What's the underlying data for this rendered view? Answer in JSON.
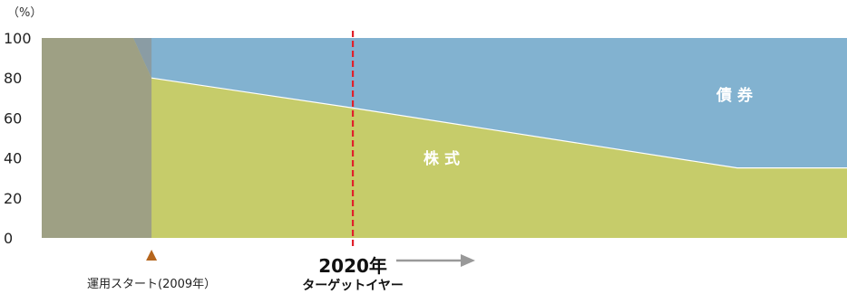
{
  "chart_data": {
    "type": "area",
    "y_unit_label": "（%）",
    "ylim": [
      0,
      100
    ],
    "y_ticks": [
      "0",
      "20",
      "40",
      "60",
      "80",
      "100"
    ],
    "x_start_year": 2003,
    "x_end_year": 2047,
    "series": [
      {
        "name": "株式",
        "color": "#c6cc6a",
        "points": [
          {
            "year": 2003,
            "value": 100
          },
          {
            "year": 2008,
            "value": 100
          },
          {
            "year": 2009,
            "value": 80
          },
          {
            "year": 2020,
            "value": 65
          },
          {
            "year": 2041,
            "value": 35
          },
          {
            "year": 2047,
            "value": 35
          }
        ]
      },
      {
        "name": "債券",
        "color": "#82b2d0",
        "points": [
          {
            "year": 2003,
            "value": 0
          },
          {
            "year": 2008,
            "value": 0
          },
          {
            "year": 2009,
            "value": 20
          },
          {
            "year": 2020,
            "value": 35
          },
          {
            "year": 2041,
            "value": 65
          },
          {
            "year": 2047,
            "value": 65
          }
        ]
      }
    ],
    "past_region": {
      "from_year": 2003,
      "to_year": 2009,
      "equity_color": "#9ea084",
      "bond_color": "#8a9ca4"
    },
    "start_year": 2009,
    "target_year": 2020,
    "target_line_color": "#e0202a",
    "start_marker_color": "#b5651d",
    "annotations": {
      "start_label": "運用スタート(2009年）",
      "target_year_label": "2020年",
      "target_sub_label": "ターゲットイヤー",
      "equity_label": "株式",
      "bond_label": "債券"
    }
  }
}
